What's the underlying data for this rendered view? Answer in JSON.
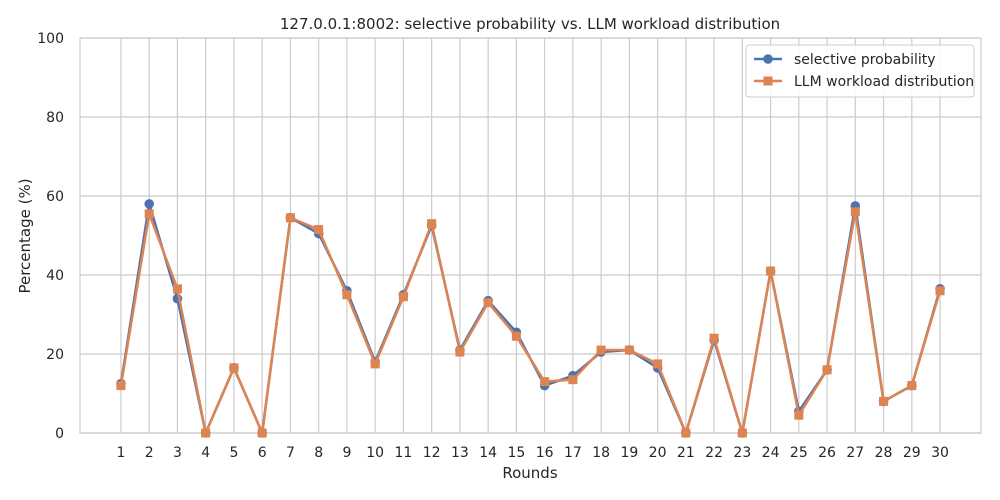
{
  "chart_data": {
    "type": "line",
    "title": "127.0.0.1:8002: selective probability vs. LLM workload distribution",
    "xlabel": "Rounds",
    "ylabel": "Percentage (%)",
    "ylim": [
      0,
      100
    ],
    "yticks": [
      0,
      20,
      40,
      60,
      80,
      100
    ],
    "grid": true,
    "legend_position": "top-right",
    "x": [
      1,
      2,
      3,
      4,
      5,
      6,
      7,
      8,
      9,
      10,
      11,
      12,
      13,
      14,
      15,
      16,
      17,
      18,
      19,
      20,
      21,
      22,
      23,
      24,
      25,
      26,
      27,
      28,
      29,
      30
    ],
    "series": [
      {
        "name": "selective probability",
        "color": "#4c72b0",
        "marker": "circle",
        "values": [
          12.5,
          58.0,
          34.0,
          0.0,
          16.5,
          0.0,
          54.5,
          50.5,
          36.0,
          18.0,
          35.0,
          52.5,
          21.0,
          33.5,
          25.5,
          12.0,
          14.5,
          20.5,
          21.0,
          16.5,
          0.0,
          23.5,
          0.0,
          41.0,
          5.5,
          16.0,
          57.5,
          8.0,
          12.0,
          36.5
        ]
      },
      {
        "name": "LLM workload distribution",
        "color": "#dd8452",
        "marker": "square",
        "values": [
          12.0,
          55.5,
          36.5,
          0.0,
          16.5,
          0.0,
          54.5,
          51.5,
          35.0,
          17.5,
          34.5,
          53.0,
          20.5,
          33.0,
          24.5,
          13.0,
          13.5,
          21.0,
          21.0,
          17.5,
          0.0,
          24.0,
          0.0,
          41.0,
          4.5,
          16.0,
          56.0,
          8.0,
          12.0,
          36.0
        ]
      }
    ]
  }
}
